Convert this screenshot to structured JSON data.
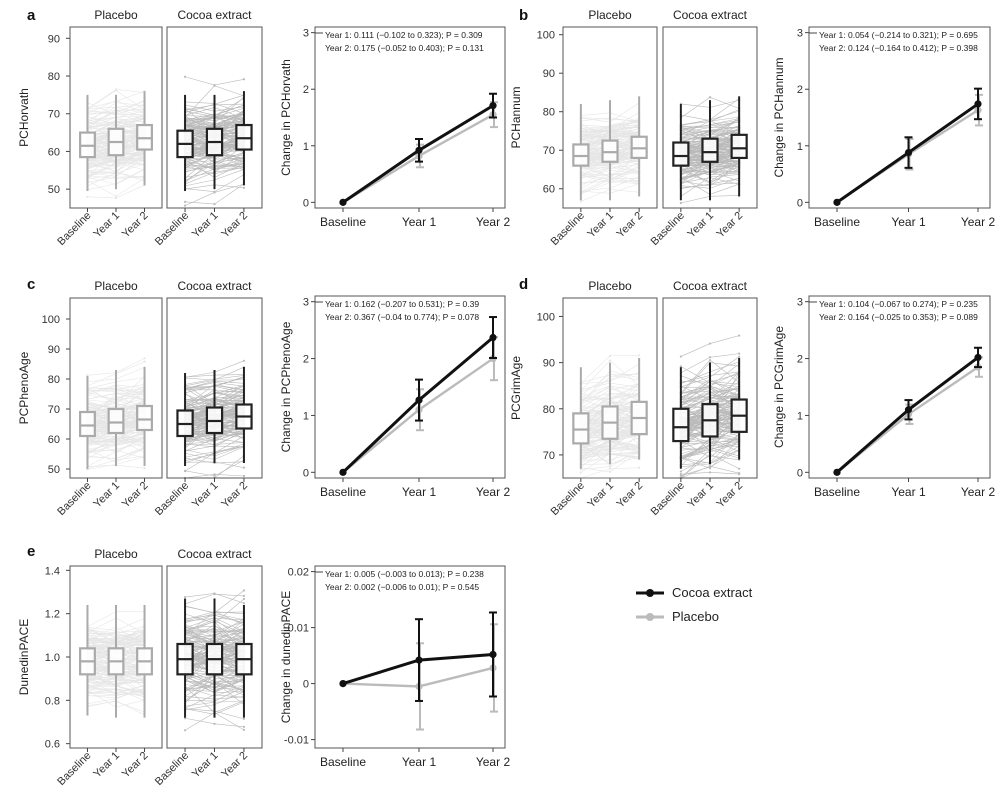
{
  "legend": [
    {
      "label": "Cocoa extract",
      "color": "#111111"
    },
    {
      "label": "Placebo",
      "color": "#bbbbbb"
    }
  ],
  "colors": {
    "cocoa": "#111111",
    "placebo": "#bbbbbb"
  },
  "chart_data": [
    {
      "panel": "a",
      "type": "line",
      "group_titles": [
        "Placebo",
        "Cocoa extract"
      ],
      "x_tick_labels": [
        "Baseline",
        "Year 1",
        "Year 2"
      ],
      "ylabel_left": "PCHorvath",
      "ylim_left": [
        45,
        93
      ],
      "yticks_left": [
        "50",
        "60",
        "70",
        "80",
        "90"
      ],
      "box_stats": {
        "placebo": [
          {
            "q1": 58.5,
            "med": 61.5,
            "q3": 65,
            "lo": 49.5,
            "hi": 75
          },
          {
            "q1": 59,
            "med": 62.5,
            "q3": 66,
            "lo": 50,
            "hi": 75
          },
          {
            "q1": 60.5,
            "med": 63.5,
            "q3": 67,
            "lo": 51,
            "hi": 76
          }
        ],
        "cocoa": [
          {
            "q1": 58.5,
            "med": 62,
            "q3": 65.5,
            "lo": 49.5,
            "hi": 75
          },
          {
            "q1": 59,
            "med": 62.5,
            "q3": 66,
            "lo": 50,
            "hi": 75
          },
          {
            "q1": 60.5,
            "med": 63.5,
            "q3": 67,
            "lo": 51,
            "hi": 76
          }
        ]
      },
      "ylabel_right": "Change in PCHorvath",
      "ylim_right": [
        -0.1,
        3.1
      ],
      "yticks_right": [
        "0",
        "1",
        "2",
        "3"
      ],
      "annotation": [
        "Year 1: 0.111 (−0.102 to 0.323); P = 0.309",
        "Year 2: 0.175 (−0.052 to 0.403); P = 0.131"
      ],
      "series": [
        {
          "name": "Cocoa extract",
          "values": [
            0,
            0.92,
            1.71
          ],
          "err": [
            0,
            0.2,
            0.21
          ]
        },
        {
          "name": "Placebo",
          "values": [
            0,
            0.82,
            1.55
          ],
          "err": [
            0,
            0.2,
            0.22
          ]
        }
      ]
    },
    {
      "panel": "b",
      "type": "line",
      "group_titles": [
        "Placebo",
        "Cocoa extract"
      ],
      "x_tick_labels": [
        "Baseline",
        "Year 1",
        "Year 2"
      ],
      "ylabel_left": "PCHannum",
      "ylim_left": [
        55,
        102
      ],
      "yticks_left": [
        "60",
        "70",
        "80",
        "90",
        "100"
      ],
      "box_stats": {
        "placebo": [
          {
            "q1": 66,
            "med": 68.5,
            "q3": 71.5,
            "lo": 57,
            "hi": 82
          },
          {
            "q1": 67,
            "med": 69.5,
            "q3": 72.5,
            "lo": 57,
            "hi": 83
          },
          {
            "q1": 68,
            "med": 70.5,
            "q3": 73.5,
            "lo": 58,
            "hi": 84
          }
        ],
        "cocoa": [
          {
            "q1": 66,
            "med": 68.5,
            "q3": 72,
            "lo": 57,
            "hi": 82
          },
          {
            "q1": 67,
            "med": 69.5,
            "q3": 73,
            "lo": 57,
            "hi": 83
          },
          {
            "q1": 68,
            "med": 70.5,
            "q3": 74,
            "lo": 58,
            "hi": 84
          }
        ]
      },
      "ylabel_right": "Change in PCHannum",
      "ylim_right": [
        -0.1,
        3.1
      ],
      "yticks_right": [
        "0",
        "1",
        "2",
        "3"
      ],
      "annotation": [
        "Year 1: 0.054 (−0.214 to 0.321); P = 0.695",
        "Year 2: 0.124 (−0.164 to 0.412); P = 0.398"
      ],
      "series": [
        {
          "name": "Cocoa extract",
          "values": [
            0,
            0.88,
            1.74
          ],
          "err": [
            0,
            0.27,
            0.27
          ]
        },
        {
          "name": "Placebo",
          "values": [
            0,
            0.85,
            1.63
          ],
          "err": [
            0,
            0.27,
            0.27
          ]
        }
      ]
    },
    {
      "panel": "c",
      "type": "line",
      "group_titles": [
        "Placebo",
        "Cocoa extract"
      ],
      "x_tick_labels": [
        "Baseline",
        "Year 1",
        "Year 2"
      ],
      "ylabel_left": "PCPhenoAge",
      "ylim_left": [
        47,
        107
      ],
      "yticks_left": [
        "50",
        "60",
        "70",
        "80",
        "90",
        "100"
      ],
      "box_stats": {
        "placebo": [
          {
            "q1": 61,
            "med": 64.5,
            "q3": 69,
            "lo": 50,
            "hi": 81
          },
          {
            "q1": 62,
            "med": 65.5,
            "q3": 70,
            "lo": 51,
            "hi": 83
          },
          {
            "q1": 63,
            "med": 66.5,
            "q3": 71,
            "lo": 51,
            "hi": 84
          }
        ],
        "cocoa": [
          {
            "q1": 61,
            "med": 65,
            "q3": 69.5,
            "lo": 51,
            "hi": 82
          },
          {
            "q1": 62,
            "med": 66,
            "q3": 70.5,
            "lo": 52,
            "hi": 83
          },
          {
            "q1": 63.5,
            "med": 67.5,
            "q3": 71.5,
            "lo": 52,
            "hi": 84
          }
        ]
      },
      "ylabel_right": "Change in PCPhenoAge",
      "ylim_right": [
        -0.1,
        3.1
      ],
      "yticks_right": [
        "0",
        "1",
        "2",
        "3"
      ],
      "annotation": [
        "Year 1: 0.162 (−0.207 to 0.531); P = 0.39",
        "Year 2: 0.367 (−0.04 to 0.774); P = 0.078"
      ],
      "series": [
        {
          "name": "Cocoa extract",
          "values": [
            0,
            1.27,
            2.37
          ],
          "err": [
            0,
            0.36,
            0.36
          ]
        },
        {
          "name": "Placebo",
          "values": [
            0,
            1.1,
            2.0
          ],
          "err": [
            0,
            0.36,
            0.38
          ]
        }
      ]
    },
    {
      "panel": "d",
      "type": "line",
      "group_titles": [
        "Placebo",
        "Cocoa extract"
      ],
      "x_tick_labels": [
        "Baseline",
        "Year 1",
        "Year 2"
      ],
      "ylabel_left": "PCGrimAge",
      "ylim_left": [
        65,
        104
      ],
      "yticks_left": [
        "70",
        "80",
        "90",
        "100"
      ],
      "box_stats": {
        "placebo": [
          {
            "q1": 72.5,
            "med": 75.5,
            "q3": 79,
            "lo": 67,
            "hi": 89
          },
          {
            "q1": 73.5,
            "med": 77,
            "q3": 80.5,
            "lo": 68,
            "hi": 90
          },
          {
            "q1": 74.5,
            "med": 78,
            "q3": 81.5,
            "lo": 69,
            "hi": 91
          }
        ],
        "cocoa": [
          {
            "q1": 73,
            "med": 76,
            "q3": 80,
            "lo": 67,
            "hi": 89
          },
          {
            "q1": 74,
            "med": 77.5,
            "q3": 81,
            "lo": 68,
            "hi": 90
          },
          {
            "q1": 75,
            "med": 78.5,
            "q3": 82,
            "lo": 69,
            "hi": 91
          }
        ]
      },
      "ylabel_right": "Change in PCGrimAge",
      "ylim_right": [
        -0.1,
        3.1
      ],
      "yticks_right": [
        "0",
        "1",
        "2",
        "3"
      ],
      "annotation": [
        "Year 1: 0.104 (−0.067 to 0.274); P = 0.235",
        "Year 2: 0.164 (−0.025 to 0.353); P = 0.089"
      ],
      "series": [
        {
          "name": "Cocoa extract",
          "values": [
            0,
            1.1,
            2.02
          ],
          "err": [
            0,
            0.17,
            0.17
          ]
        },
        {
          "name": "Placebo",
          "values": [
            0,
            1.02,
            1.85
          ],
          "err": [
            0,
            0.17,
            0.17
          ]
        }
      ]
    },
    {
      "panel": "e",
      "type": "line",
      "group_titles": [
        "Placebo",
        "Cocoa extract"
      ],
      "x_tick_labels": [
        "Baseline",
        "Year 1",
        "Year 2"
      ],
      "ylabel_left": "DunedinPACE",
      "ylim_left": [
        0.58,
        1.42
      ],
      "yticks_left": [
        "0.6",
        "0.8",
        "1.0",
        "1.2",
        "1.4"
      ],
      "box_stats": {
        "placebo": [
          {
            "q1": 0.92,
            "med": 0.98,
            "q3": 1.04,
            "lo": 0.73,
            "hi": 1.24
          },
          {
            "q1": 0.92,
            "med": 0.98,
            "q3": 1.04,
            "lo": 0.72,
            "hi": 1.24
          },
          {
            "q1": 0.92,
            "med": 0.98,
            "q3": 1.04,
            "lo": 0.72,
            "hi": 1.24
          }
        ],
        "cocoa": [
          {
            "q1": 0.92,
            "med": 0.99,
            "q3": 1.06,
            "lo": 0.72,
            "hi": 1.27
          },
          {
            "q1": 0.92,
            "med": 0.99,
            "q3": 1.06,
            "lo": 0.72,
            "hi": 1.27
          },
          {
            "q1": 0.92,
            "med": 0.99,
            "q3": 1.06,
            "lo": 0.72,
            "hi": 1.24
          }
        ]
      },
      "ylabel_right": "Change in dunedinPACE",
      "ylim_right": [
        -0.0115,
        0.021
      ],
      "yticks_right": [
        "-0.01",
        "0",
        "0.01",
        "0.02"
      ],
      "annotation": [
        "Year 1: 0.005 (−0.003 to 0.013); P = 0.238",
        "Year 2: 0.002 (−0.006 to 0.01); P = 0.545"
      ],
      "series": [
        {
          "name": "Cocoa extract",
          "values": [
            0,
            0.0042,
            0.0052
          ],
          "err": [
            0,
            0.0073,
            0.0075
          ]
        },
        {
          "name": "Placebo",
          "values": [
            0,
            -0.0005,
            0.0028
          ],
          "err": [
            0,
            0.0077,
            0.0078
          ]
        }
      ]
    }
  ]
}
